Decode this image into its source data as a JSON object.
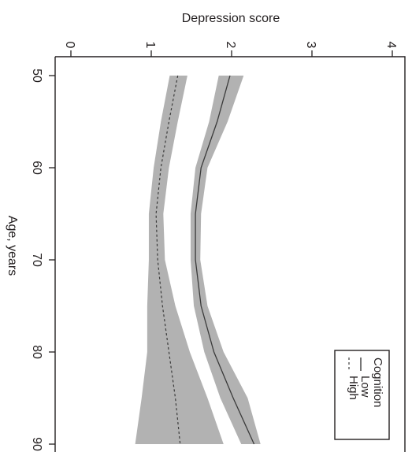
{
  "chart_data": {
    "type": "line",
    "title": "",
    "xlabel": "Age, years",
    "ylabel": "Depression score",
    "xlim": [
      50,
      90
    ],
    "ylim": [
      0,
      4
    ],
    "x_ticks": [
      50,
      60,
      70,
      80,
      90
    ],
    "y_ticks": [
      0,
      1,
      2,
      3,
      4
    ],
    "grid": false,
    "orientation": "rotated 90 degrees clockwise",
    "legend": {
      "title": "Cognition",
      "placement": "bottom-right",
      "entries": [
        "Low",
        "High"
      ]
    },
    "band_color": "#b2b2b2",
    "line_color": "#3a3a3a",
    "x": [
      50,
      55,
      60,
      65,
      70,
      75,
      80,
      85,
      90
    ],
    "series": [
      {
        "name": "Low",
        "style": "solid",
        "values": [
          1.98,
          1.82,
          1.62,
          1.55,
          1.55,
          1.62,
          1.78,
          2.02,
          2.28
        ],
        "lower": [
          1.84,
          1.72,
          1.55,
          1.49,
          1.49,
          1.53,
          1.66,
          1.86,
          2.12
        ],
        "upper": [
          2.15,
          1.95,
          1.7,
          1.62,
          1.61,
          1.7,
          1.9,
          2.2,
          2.36
        ]
      },
      {
        "name": "High",
        "style": "dashed",
        "values": [
          1.33,
          1.22,
          1.12,
          1.06,
          1.08,
          1.14,
          1.22,
          1.3,
          1.36
        ],
        "lower": [
          1.23,
          1.12,
          1.03,
          0.97,
          0.97,
          0.95,
          0.95,
          0.88,
          0.8
        ],
        "upper": [
          1.45,
          1.33,
          1.22,
          1.15,
          1.17,
          1.3,
          1.48,
          1.7,
          1.9
        ]
      }
    ]
  }
}
